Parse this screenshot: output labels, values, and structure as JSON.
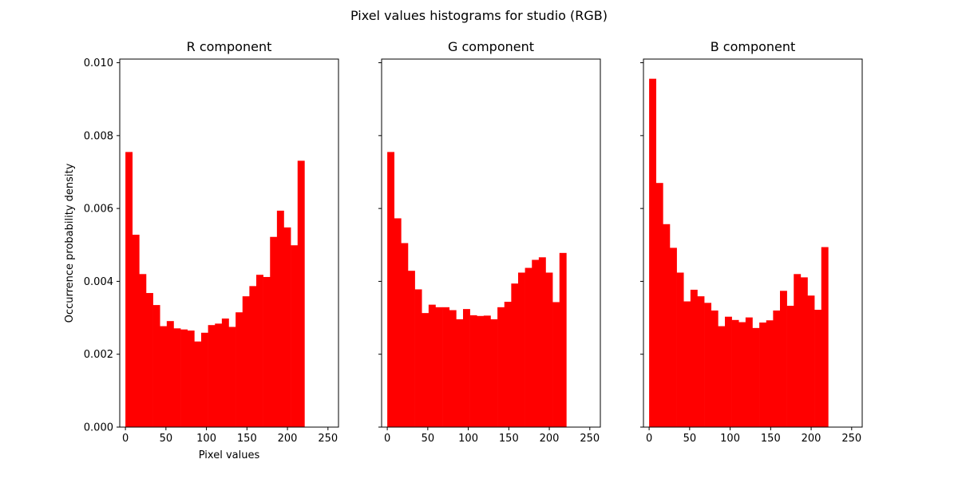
{
  "figure_title": "Pixel values histograms for studio (RGB)",
  "chart_data": [
    {
      "type": "bar",
      "title": "R component",
      "xlabel": "Pixel values",
      "ylabel": "Occurrence probability density",
      "xlim": [
        -7,
        263
      ],
      "ylim": [
        0,
        0.0101
      ],
      "xticks": [
        "0",
        "50",
        "100",
        "150",
        "200",
        "250"
      ],
      "yticks": [
        "0.000",
        "0.002",
        "0.004",
        "0.006",
        "0.008",
        "0.010"
      ],
      "bin_start": 0,
      "bin_width": 8.5,
      "color": "#ff0000",
      "values": [
        0.00755,
        0.00528,
        0.0042,
        0.00368,
        0.00335,
        0.00277,
        0.00291,
        0.00271,
        0.00268,
        0.00265,
        0.00235,
        0.00259,
        0.0028,
        0.00284,
        0.00298,
        0.00275,
        0.00315,
        0.00359,
        0.00387,
        0.00418,
        0.00412,
        0.00522,
        0.00594,
        0.00548,
        0.00499,
        0.00731
      ]
    },
    {
      "type": "bar",
      "title": "G component",
      "xlabel": "",
      "ylabel": "",
      "xlim": [
        -7,
        263
      ],
      "ylim": [
        0,
        0.0101
      ],
      "xticks": [
        "0",
        "50",
        "100",
        "150",
        "200",
        "250"
      ],
      "yticks": [],
      "bin_start": 0,
      "bin_width": 8.5,
      "color": "#ff0000",
      "values": [
        0.00755,
        0.00573,
        0.00505,
        0.00429,
        0.00378,
        0.00313,
        0.00336,
        0.00329,
        0.00329,
        0.00321,
        0.00296,
        0.00324,
        0.00307,
        0.00305,
        0.00306,
        0.00296,
        0.00329,
        0.00344,
        0.00394,
        0.00424,
        0.00437,
        0.00459,
        0.00466,
        0.00424,
        0.00343,
        0.00478
      ]
    },
    {
      "type": "bar",
      "title": "B component",
      "xlabel": "",
      "ylabel": "",
      "xlim": [
        -7,
        263
      ],
      "ylim": [
        0,
        0.0101
      ],
      "xticks": [
        "0",
        "50",
        "100",
        "150",
        "200",
        "250"
      ],
      "yticks": [],
      "bin_start": 0,
      "bin_width": 8.5,
      "color": "#ff0000",
      "values": [
        0.00956,
        0.0067,
        0.00557,
        0.00492,
        0.00424,
        0.00345,
        0.00377,
        0.00359,
        0.00341,
        0.0032,
        0.00277,
        0.00303,
        0.00294,
        0.00288,
        0.00301,
        0.00272,
        0.00287,
        0.00293,
        0.0032,
        0.00374,
        0.00333,
        0.0042,
        0.00411,
        0.00361,
        0.00322,
        0.00494
      ]
    }
  ]
}
